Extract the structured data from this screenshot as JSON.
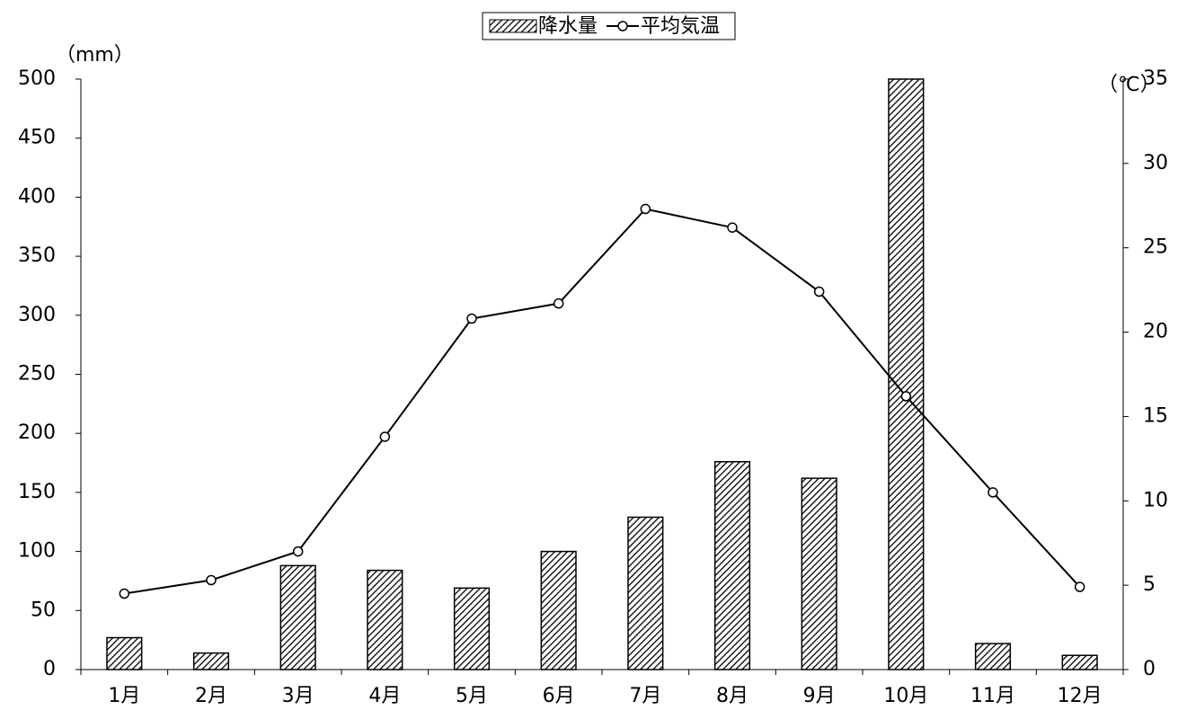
{
  "chart_data": {
    "type": "bar-line",
    "ylabel": "（mm）",
    "y2label": "（℃）",
    "categories": [
      "1月",
      "2月",
      "3月",
      "4月",
      "5月",
      "6月",
      "7月",
      "8月",
      "9月",
      "10月",
      "11月",
      "12月"
    ],
    "series": [
      {
        "name": "降水量",
        "type": "bar",
        "color": "#000000",
        "values": [
          27,
          14,
          88,
          84,
          69,
          100,
          129,
          176,
          162,
          500,
          22,
          12
        ]
      },
      {
        "name": "平均気温",
        "type": "line",
        "axis": "y2",
        "color": "#000000",
        "values": [
          4.5,
          5.3,
          7.0,
          13.8,
          20.8,
          21.7,
          27.3,
          26.2,
          22.4,
          16.2,
          10.5,
          4.9
        ]
      }
    ],
    "ylim": [
      0,
      500
    ],
    "yticks": [
      0,
      50,
      100,
      150,
      200,
      250,
      300,
      350,
      400,
      450,
      500
    ],
    "y2lim": [
      0,
      35
    ],
    "y2ticks": [
      0,
      5,
      10,
      15,
      20,
      25,
      30,
      35
    ],
    "legend": "top"
  }
}
